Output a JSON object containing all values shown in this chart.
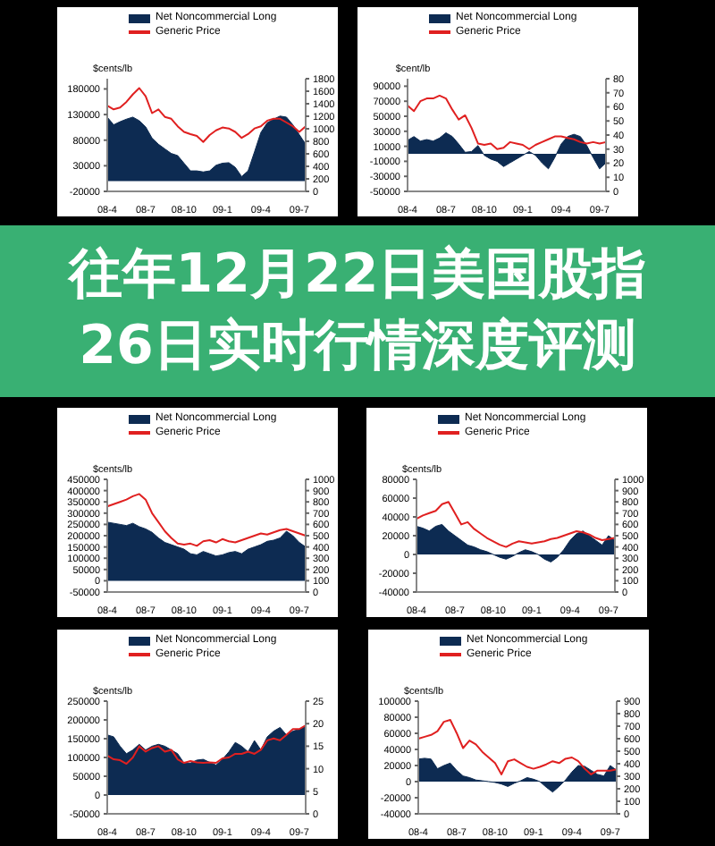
{
  "chart_data": [
    {
      "type": "area",
      "ylabel": "$cents/lb",
      "legend": "top",
      "categories": [
        "08-4",
        null,
        null,
        null,
        null,
        null,
        "08-7",
        null,
        null,
        null,
        null,
        null,
        "08-10",
        null,
        null,
        null,
        null,
        null,
        "09-1",
        null,
        null,
        null,
        null,
        null,
        "09-4",
        null,
        null,
        null,
        null,
        null,
        "09-7",
        null
      ],
      "ylim": [
        -20000,
        200000
      ],
      "yticks": [
        -20000,
        30000,
        80000,
        130000,
        180000
      ],
      "y2lim": [
        0,
        1800
      ],
      "y2ticks": [
        0,
        200,
        400,
        600,
        800,
        1000,
        1200,
        1400,
        1600,
        1800
      ],
      "series": [
        {
          "name": "Net Noncommercial Long",
          "type": "area",
          "color": "#0d2b52",
          "values": [
            125000,
            110000,
            116000,
            121000,
            125000,
            118000,
            106000,
            84000,
            72000,
            63000,
            54000,
            50000,
            35000,
            20000,
            20000,
            18000,
            20000,
            31000,
            35000,
            36000,
            27000,
            9000,
            20000,
            57000,
            95000,
            114000,
            121000,
            127000,
            125000,
            110000,
            91000,
            72000
          ]
        },
        {
          "name": "Generic Price",
          "type": "line",
          "axis": "y2",
          "color": "#e02020",
          "values": [
            1370,
            1310,
            1340,
            1430,
            1550,
            1650,
            1520,
            1250,
            1310,
            1190,
            1160,
            1040,
            950,
            915,
            885,
            790,
            900,
            975,
            1020,
            1005,
            950,
            855,
            915,
            1005,
            1040,
            1130,
            1160,
            1160,
            1100,
            1040,
            950,
            1040
          ]
        }
      ]
    },
    {
      "type": "area",
      "ylabel": "$cent/lb",
      "legend": "top",
      "categories": [
        "08-4",
        null,
        null,
        null,
        null,
        null,
        "08-7",
        null,
        null,
        null,
        null,
        null,
        "08-10",
        null,
        null,
        null,
        null,
        null,
        "09-1",
        null,
        null,
        null,
        null,
        null,
        "09-4",
        null,
        null,
        null,
        null,
        null,
        "09-7",
        null
      ],
      "ylim": [
        -50000,
        100000
      ],
      "yticks": [
        -50000,
        -30000,
        -10000,
        10000,
        30000,
        50000,
        70000,
        90000
      ],
      "y2lim": [
        0,
        80
      ],
      "y2ticks": [
        0,
        10,
        20,
        30,
        40,
        50,
        60,
        70,
        80
      ],
      "series": [
        {
          "name": "Net Noncommercial Long",
          "type": "area",
          "color": "#0d2b52",
          "values": [
            18000,
            23000,
            17000,
            19000,
            17000,
            21000,
            28000,
            23000,
            13000,
            2000,
            3000,
            11000,
            -2000,
            -7000,
            -10000,
            -17000,
            -12000,
            -7000,
            -2000,
            3000,
            -2000,
            -12000,
            -20000,
            -5000,
            13000,
            23000,
            26000,
            23000,
            11000,
            -5000,
            -20000,
            -12000
          ]
        },
        {
          "name": "Generic Price",
          "type": "line",
          "axis": "y2",
          "color": "#e02020",
          "values": [
            61,
            57,
            64,
            66,
            66,
            68,
            66,
            58,
            51,
            54,
            45,
            34,
            33,
            34,
            30,
            31,
            35,
            34,
            33,
            30,
            33,
            35,
            37,
            39,
            39,
            38,
            37,
            35,
            34,
            35,
            34,
            35
          ]
        }
      ]
    },
    {
      "type": "area",
      "ylabel": "$cents/lb",
      "legend": "top",
      "annotations": [
        "往年12月22日美国股指",
        "26日实时行情深度评测"
      ],
      "categories": [
        "08-4",
        null,
        null,
        null,
        null,
        null,
        "08-7",
        null,
        null,
        null,
        null,
        null,
        "08-10",
        null,
        null,
        null,
        null,
        null,
        "09-1",
        null,
        null,
        null,
        null,
        null,
        "09-4",
        null,
        null,
        null,
        null,
        null,
        "09-7",
        null
      ],
      "ylim": [
        -50000,
        450000
      ],
      "yticks": [
        -50000,
        0,
        50000,
        100000,
        150000,
        200000,
        250000,
        300000,
        350000,
        400000,
        450000
      ],
      "y2lim": [
        0,
        1000
      ],
      "y2ticks": [
        0,
        100,
        200,
        300,
        400,
        500,
        600,
        700,
        800,
        900,
        1000
      ],
      "series": [
        {
          "name": "Net Noncommercial Long",
          "type": "area",
          "color": "#0d2b52",
          "values": [
            260000,
            255000,
            250000,
            245000,
            255000,
            240000,
            230000,
            215000,
            190000,
            170000,
            160000,
            150000,
            140000,
            120000,
            115000,
            130000,
            120000,
            110000,
            115000,
            125000,
            130000,
            120000,
            140000,
            150000,
            160000,
            175000,
            180000,
            190000,
            220000,
            200000,
            170000,
            150000
          ]
        },
        {
          "name": "Generic Price",
          "type": "line",
          "axis": "y2",
          "color": "#e02020",
          "values": [
            760,
            780,
            800,
            820,
            850,
            870,
            820,
            700,
            620,
            540,
            480,
            430,
            420,
            430,
            410,
            450,
            460,
            440,
            470,
            450,
            440,
            460,
            480,
            500,
            520,
            510,
            530,
            550,
            560,
            540,
            520,
            500
          ]
        }
      ]
    },
    {
      "type": "area",
      "ylabel": "$cents/lb",
      "legend": "top",
      "categories": [
        "08-4",
        null,
        null,
        null,
        null,
        null,
        "08-7",
        null,
        null,
        null,
        null,
        null,
        "08-10",
        null,
        null,
        null,
        null,
        null,
        "09-1",
        null,
        null,
        null,
        null,
        null,
        "09-4",
        null,
        null,
        null,
        null,
        null,
        "09-7",
        null
      ],
      "ylim": [
        -40000,
        80000
      ],
      "yticks": [
        -40000,
        -20000,
        0,
        20000,
        40000,
        60000,
        80000
      ],
      "y2lim": [
        0,
        1000
      ],
      "y2ticks": [
        0,
        100,
        200,
        300,
        400,
        500,
        600,
        700,
        800,
        900,
        1000
      ],
      "series": [
        {
          "name": "Net Noncommercial Long",
          "type": "area",
          "color": "#0d2b52",
          "values": [
            30000,
            28000,
            25000,
            30000,
            32000,
            25000,
            20000,
            15000,
            10000,
            8000,
            5000,
            3000,
            0,
            -3000,
            -5000,
            -2000,
            2000,
            5000,
            3000,
            0,
            -5000,
            -8000,
            -3000,
            5000,
            15000,
            22000,
            25000,
            20000,
            15000,
            10000,
            20000,
            15000
          ]
        },
        {
          "name": "Generic Price",
          "type": "line",
          "axis": "y2",
          "color": "#e02020",
          "values": [
            650,
            680,
            700,
            720,
            780,
            800,
            700,
            600,
            620,
            560,
            520,
            480,
            450,
            420,
            400,
            430,
            450,
            440,
            430,
            440,
            450,
            470,
            480,
            500,
            520,
            540,
            530,
            510,
            480,
            460,
            470,
            480
          ]
        }
      ]
    },
    {
      "type": "area",
      "ylabel": "$cents/lb",
      "legend": "top",
      "categories": [
        "08-4",
        null,
        null,
        null,
        null,
        null,
        "08-7",
        null,
        null,
        null,
        null,
        null,
        "08-10",
        null,
        null,
        null,
        null,
        null,
        "09-1",
        null,
        null,
        null,
        null,
        null,
        "09-4",
        null,
        null,
        null,
        null,
        null,
        "09-7",
        null
      ],
      "ylim": [
        -50000,
        250000
      ],
      "yticks": [
        -50000,
        0,
        50000,
        100000,
        150000,
        200000,
        250000
      ],
      "y2lim": [
        0,
        25
      ],
      "y2ticks": [
        0,
        5,
        10,
        15,
        20,
        25
      ],
      "series": [
        {
          "name": "Net Noncommercial Long",
          "type": "area",
          "color": "#0d2b52",
          "values": [
            160000,
            155000,
            130000,
            110000,
            120000,
            135000,
            120000,
            130000,
            135000,
            130000,
            120000,
            110000,
            85000,
            85000,
            93000,
            95000,
            87000,
            80000,
            95000,
            115000,
            140000,
            130000,
            115000,
            145000,
            120000,
            155000,
            170000,
            180000,
            160000,
            170000,
            175000,
            185000
          ]
        },
        {
          "name": "Generic Price",
          "type": "line",
          "axis": "y2",
          "color": "#e02020",
          "values": [
            12.9,
            12.1,
            11.9,
            11.1,
            12.5,
            15,
            13.8,
            14.6,
            15,
            13.8,
            14.2,
            12.1,
            11.3,
            11.7,
            11.4,
            11.3,
            11.4,
            11.3,
            12.3,
            12.5,
            13.3,
            13.3,
            13.8,
            13.3,
            14.2,
            16.3,
            16.7,
            16.3,
            17.5,
            18.8,
            18.8,
            19.6
          ]
        }
      ]
    },
    {
      "type": "area",
      "ylabel": "$cents/lb",
      "legend": "top",
      "categories": [
        "08-4",
        null,
        null,
        null,
        null,
        null,
        "08-7",
        null,
        null,
        null,
        null,
        null,
        "08-10",
        null,
        null,
        null,
        null,
        null,
        "09-1",
        null,
        null,
        null,
        null,
        null,
        "09-4",
        null,
        null,
        null,
        null,
        null,
        "09-7",
        null
      ],
      "ylim": [
        -40000,
        100000
      ],
      "yticks": [
        -40000,
        -20000,
        0,
        20000,
        40000,
        60000,
        80000,
        100000
      ],
      "y2lim": [
        0,
        900
      ],
      "y2ticks": [
        0,
        100,
        200,
        300,
        400,
        500,
        600,
        700,
        800,
        900
      ],
      "series": [
        {
          "name": "Net Noncommercial Long",
          "type": "area",
          "color": "#0d2b52",
          "values": [
            28000,
            29000,
            28000,
            16000,
            20000,
            23000,
            14000,
            7000,
            5000,
            2000,
            1000,
            0,
            -1000,
            -3000,
            -6000,
            -2000,
            1000,
            5000,
            3000,
            0,
            -7000,
            -13000,
            -6000,
            2000,
            12000,
            20000,
            19000,
            14000,
            9000,
            7000,
            20000,
            14000
          ]
        },
        {
          "name": "Generic Price",
          "type": "line",
          "axis": "y2",
          "color": "#e02020",
          "values": [
            600,
            615,
            630,
            660,
            735,
            750,
            645,
            525,
            585,
            555,
            495,
            450,
            405,
            315,
            420,
            435,
            405,
            375,
            360,
            375,
            395,
            420,
            405,
            440,
            450,
            420,
            360,
            315,
            345,
            345,
            345,
            355
          ]
        }
      ]
    }
  ]
}
